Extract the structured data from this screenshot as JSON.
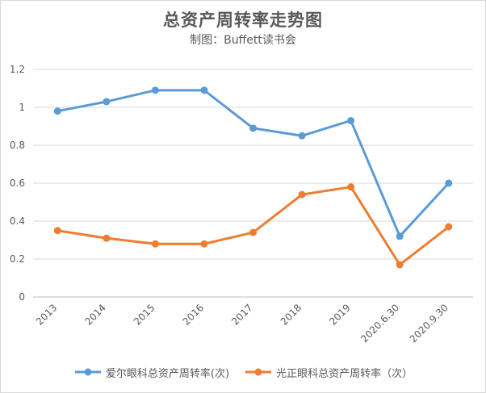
{
  "chart_data": {
    "type": "line",
    "title": "总资产周转率走势图",
    "subtitle": "制图：Buffett读书会",
    "categories": [
      "2013",
      "2014",
      "2015",
      "2016",
      "2017",
      "2018",
      "2019",
      "2020.6.30",
      "2020.9.30"
    ],
    "series": [
      {
        "name": "爱尔眼科总资产周转率(次)",
        "color": "#5b9bd5",
        "values": [
          0.98,
          1.03,
          1.09,
          1.09,
          0.89,
          0.85,
          0.93,
          0.32,
          0.6
        ]
      },
      {
        "name": "光正眼科总资产周转率（次）",
        "color": "#ed7d31",
        "values": [
          0.35,
          0.31,
          0.28,
          0.28,
          0.34,
          0.54,
          0.58,
          0.17,
          0.37
        ]
      }
    ],
    "ylim": [
      0,
      1.2
    ],
    "yticks": [
      "0",
      "0.2",
      "0.4",
      "0.6",
      "0.8",
      "1",
      "1.2"
    ],
    "grid": true,
    "legend_position": "bottom"
  }
}
